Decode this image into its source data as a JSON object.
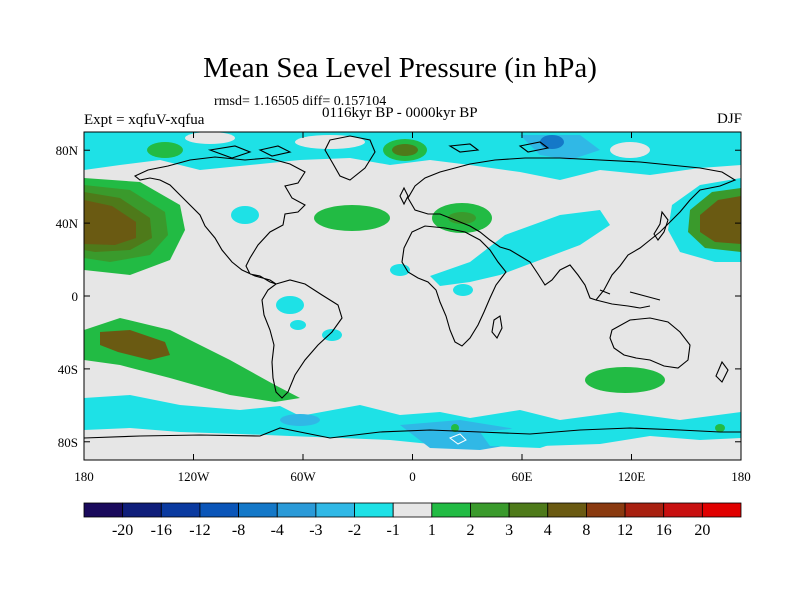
{
  "title": "Mean Sea Level Pressure (in hPa)",
  "stats": "rmsd= 1.16505  diff= 0.157104",
  "period": "0116kyr BP - 0000kyr BP",
  "experiment": "Expt = xqfuV-xqfua",
  "season": "DJF",
  "axes": {
    "lat_labels": [
      "80N",
      "40N",
      "0",
      "40S",
      "80S"
    ],
    "lat_values": [
      80,
      40,
      0,
      -40,
      -80
    ],
    "lon_labels": [
      "180",
      "120W",
      "60W",
      "0",
      "60E",
      "120E",
      "180"
    ],
    "lon_values": [
      -180,
      -120,
      -60,
      0,
      60,
      120,
      180
    ]
  },
  "colorbar": {
    "labels": [
      "-20",
      "-16",
      "-12",
      "-8",
      "-4",
      "-3",
      "-2",
      "-1",
      "1",
      "2",
      "3",
      "4",
      "8",
      "12",
      "16",
      "20"
    ],
    "colors": [
      "#1a0a5c",
      "#0f1e7a",
      "#0a3aa0",
      "#0a55b8",
      "#1478c8",
      "#2a9ad8",
      "#30b8e6",
      "#1ee1e6",
      "#e6e6e6",
      "#22bb44",
      "#3a9a2c",
      "#4e7a1a",
      "#6a5a12",
      "#8a3a10",
      "#a82010",
      "#c81010",
      "#e00000"
    ]
  },
  "palette": {
    "neutral": "#e6e6e6",
    "cyan": "#1ee1e6",
    "lightblue": "#30b8e6",
    "green": "#22bb44",
    "darkgreen": "#3a9a2c",
    "olive": "#4e7a1a",
    "brown": "#6a5a12"
  }
}
